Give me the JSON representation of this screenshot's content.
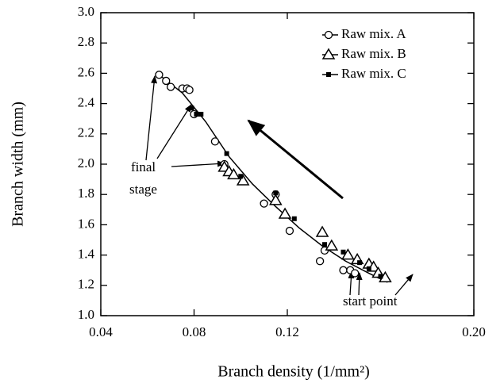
{
  "chart_data": {
    "type": "scatter",
    "xlabel": "Branch density (1/mm²)",
    "ylabel": "Branch width (mm)",
    "xlim": [
      0.04,
      0.2
    ],
    "ylim": [
      1,
      3
    ],
    "xticks": [
      0.04,
      0.08,
      0.12,
      {
        "value": 0.2,
        "label": "0.20"
      }
    ],
    "yticks": [
      {
        "value": 1,
        "label": "1.0"
      },
      {
        "value": 1.2,
        "label": "1.2"
      },
      {
        "value": 1.4,
        "label": "1.4"
      },
      {
        "value": 1.6,
        "label": "1.6"
      },
      {
        "value": 1.8,
        "label": "1.8"
      },
      {
        "value": 2,
        "label": "2.0"
      },
      {
        "value": 2.2,
        "label": "2.2"
      },
      {
        "value": 2.4,
        "label": "2.4"
      },
      {
        "value": 2.6,
        "label": "2.6"
      },
      {
        "value": 2.8,
        "label": "2.8"
      },
      {
        "value": 3,
        "label": "3.0"
      }
    ],
    "legend": "upper right",
    "series": [
      {
        "name": "Raw mix. A",
        "marker": "circle",
        "color": "#000000",
        "x": [
          0.065,
          0.068,
          0.07,
          0.075,
          0.077,
          0.078,
          0.08,
          0.089,
          0.093,
          0.11,
          0.115,
          0.121,
          0.134,
          0.136,
          0.144,
          0.147,
          0.149
        ],
        "values": [
          2.59,
          2.55,
          2.51,
          2.5,
          2.5,
          2.49,
          2.33,
          2.15,
          2.0,
          1.74,
          1.8,
          1.56,
          1.36,
          1.43,
          1.3,
          1.3,
          1.28
        ]
      },
      {
        "name": "Raw mix. B",
        "marker": "triangle",
        "color": "#000000",
        "x": [
          0.093,
          0.095,
          0.097,
          0.101,
          0.115,
          0.119,
          0.135,
          0.139,
          0.146,
          0.15,
          0.155,
          0.157,
          0.159,
          0.162
        ],
        "values": [
          1.98,
          1.95,
          1.93,
          1.89,
          1.76,
          1.67,
          1.55,
          1.46,
          1.4,
          1.37,
          1.34,
          1.32,
          1.28,
          1.25
        ]
      },
      {
        "name": "Raw mix. C",
        "marker": "square",
        "color": "#000000",
        "x": [
          0.079,
          0.081,
          0.083,
          0.094,
          0.1,
          0.115,
          0.123,
          0.136,
          0.144,
          0.151,
          0.155,
          0.16
        ],
        "values": [
          2.37,
          2.33,
          2.33,
          2.07,
          1.92,
          1.81,
          1.64,
          1.47,
          1.42,
          1.35,
          1.31,
          1.26
        ]
      }
    ],
    "fit": {
      "x": [
        0.065,
        0.075,
        0.085,
        0.095,
        0.105,
        0.115,
        0.125,
        0.135,
        0.145,
        0.155,
        0.163
      ],
      "values": [
        2.59,
        2.47,
        2.28,
        2.05,
        1.87,
        1.72,
        1.58,
        1.46,
        1.36,
        1.28,
        1.22
      ]
    },
    "annotations": [
      "final",
      "stage",
      "start point"
    ]
  }
}
